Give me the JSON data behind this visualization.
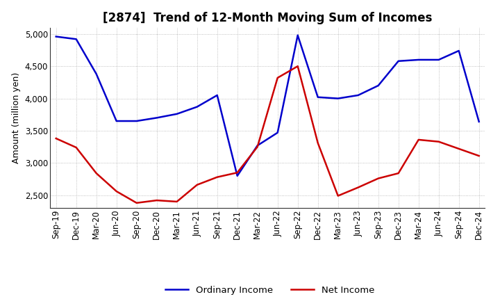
{
  "title": "[2874]  Trend of 12-Month Moving Sum of Incomes",
  "ylabel": "Amount (million yen)",
  "xlabels": [
    "Sep-19",
    "Dec-19",
    "Mar-20",
    "Jun-20",
    "Sep-20",
    "Dec-20",
    "Mar-21",
    "Jun-21",
    "Sep-21",
    "Dec-21",
    "Mar-22",
    "Jun-22",
    "Sep-22",
    "Dec-22",
    "Mar-23",
    "Jun-23",
    "Sep-23",
    "Dec-23",
    "Mar-24",
    "Jun-24",
    "Sep-24",
    "Dec-24"
  ],
  "ordinary_income": [
    4960,
    4920,
    4380,
    3650,
    3650,
    3700,
    3760,
    3870,
    4050,
    2800,
    3270,
    3470,
    4980,
    4020,
    4000,
    4050,
    4200,
    4580,
    4600,
    4600,
    4740,
    3640
  ],
  "net_income": [
    3380,
    3240,
    2840,
    2560,
    2380,
    2420,
    2400,
    2660,
    2780,
    2850,
    3250,
    4320,
    4500,
    3310,
    2490,
    2620,
    2760,
    2840,
    3360,
    3330,
    3220,
    3110
  ],
  "ordinary_color": "#0000cc",
  "net_color": "#cc0000",
  "ylim": [
    2300,
    5100
  ],
  "yticks": [
    2500,
    3000,
    3500,
    4000,
    4500,
    5000
  ],
  "background_color": "#ffffff",
  "grid_color": "#999999",
  "title_fontsize": 12,
  "tick_fontsize": 8.5,
  "ylabel_fontsize": 9,
  "legend_labels": [
    "Ordinary Income",
    "Net Income"
  ],
  "line_width": 1.8
}
